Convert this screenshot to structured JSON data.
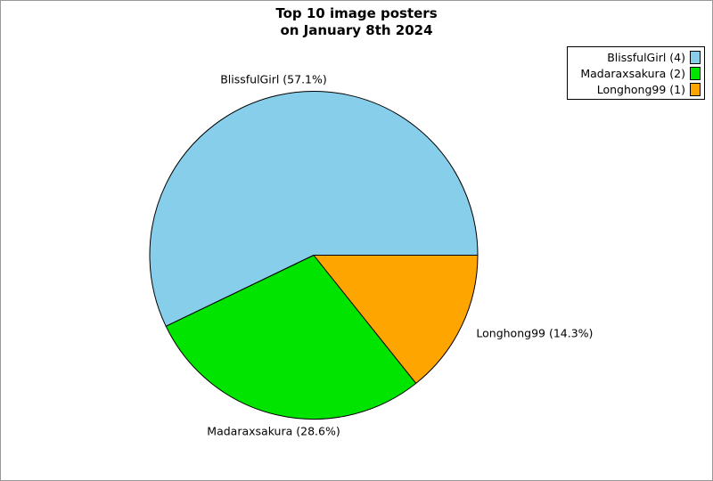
{
  "figure": {
    "title_line1": "Top 10 image posters",
    "title_line2": "on January 8th 2024",
    "background": "#ffffff",
    "frame_color": "#999999"
  },
  "chart_data": {
    "type": "pie",
    "title": "Top 10 image posters on January 8th 2024",
    "start_angle_deg": 0,
    "direction": "counterclockwise",
    "edge_color": "#000000",
    "label_distance": 1.1,
    "slices": [
      {
        "name": "BlissfulGirl",
        "value": 4,
        "percent": 57.1,
        "label": "BlissfulGirl (57.1%)",
        "color": "#87CEEB"
      },
      {
        "name": "Madaraxsakura",
        "value": 2,
        "percent": 28.6,
        "label": "Madaraxsakura (28.6%)",
        "color": "#00E400"
      },
      {
        "name": "Longhong99",
        "value": 1,
        "percent": 14.3,
        "label": "Longhong99 (14.3%)",
        "color": "#FFA500"
      }
    ],
    "legend": {
      "position": "upper right",
      "entries": [
        {
          "label": "BlissfulGirl (4)",
          "color": "#87CEEB"
        },
        {
          "label": "Madaraxsakura (2)",
          "color": "#00E400"
        },
        {
          "label": "Longhong99 (1)",
          "color": "#FFA500"
        }
      ]
    }
  }
}
